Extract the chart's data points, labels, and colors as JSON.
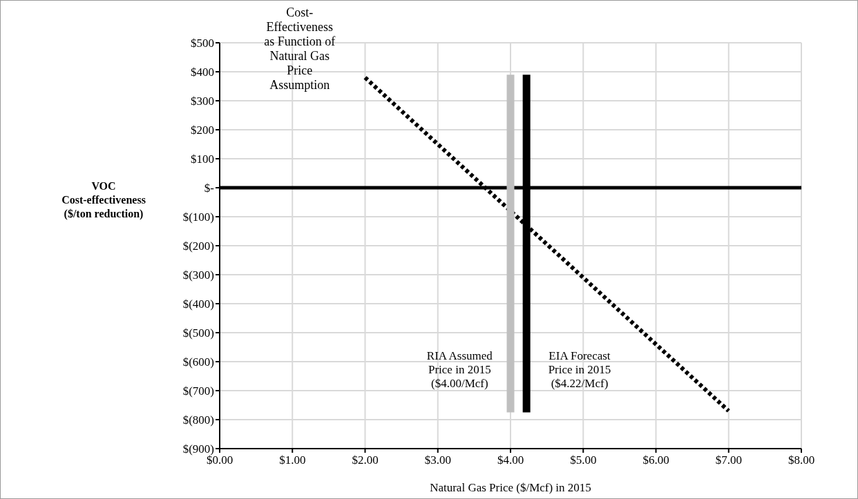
{
  "chart_data": {
    "type": "line",
    "title": "Cost-Effectiveness as Function of Natural Gas Price Assumption",
    "xlabel": "Natural Gas Price ($/Mcf) in 2015",
    "ylabel": "VOC Cost-effectiveness ($/ton reduction)",
    "xlim": [
      0,
      8
    ],
    "ylim": [
      -900,
      500
    ],
    "xticks": [
      {
        "value": 0,
        "label": "$0.00"
      },
      {
        "value": 1,
        "label": "$1.00"
      },
      {
        "value": 2,
        "label": "$2.00"
      },
      {
        "value": 3,
        "label": "$3.00"
      },
      {
        "value": 4,
        "label": "$4.00"
      },
      {
        "value": 5,
        "label": "$5.00"
      },
      {
        "value": 6,
        "label": "$6.00"
      },
      {
        "value": 7,
        "label": "$7.00"
      },
      {
        "value": 8,
        "label": "$8.00"
      }
    ],
    "yticks": [
      {
        "value": -900,
        "label": "$(900)"
      },
      {
        "value": -800,
        "label": "$(800)"
      },
      {
        "value": -700,
        "label": "$(700)"
      },
      {
        "value": -600,
        "label": "$(600)"
      },
      {
        "value": -500,
        "label": "$(500)"
      },
      {
        "value": -400,
        "label": "$(400)"
      },
      {
        "value": -300,
        "label": "$(300)"
      },
      {
        "value": -200,
        "label": "$(200)"
      },
      {
        "value": -100,
        "label": "$(100)"
      },
      {
        "value": 0,
        "label": "$-"
      },
      {
        "value": 100,
        "label": "$100"
      },
      {
        "value": 200,
        "label": "$200"
      },
      {
        "value": 300,
        "label": "$300"
      },
      {
        "value": 400,
        "label": "$400"
      },
      {
        "value": 500,
        "label": "$500"
      }
    ],
    "grid": true,
    "marker": "none",
    "series": [
      {
        "color": "#000000",
        "x": [
          2,
          7
        ],
        "values": [
          380,
          -770
        ],
        "line_style": "dotted"
      },
      {
        "color": "#bfbfbf",
        "x": [
          4,
          4
        ],
        "values": [
          -775,
          390
        ],
        "line_style": "solid"
      },
      {
        "color": "#000000",
        "x": [
          4.22,
          4.22
        ],
        "values": [
          -775,
          390
        ],
        "line_style": "solid"
      }
    ],
    "ref_lines": [
      {
        "axis": "y",
        "value": 0,
        "color": "#000000"
      }
    ],
    "annotations": [
      "RIA Assumed Price in 2015 ($4.00/Mcf)",
      "EIA Forecast Price in 2015 ($4.22/Mcf)"
    ]
  }
}
